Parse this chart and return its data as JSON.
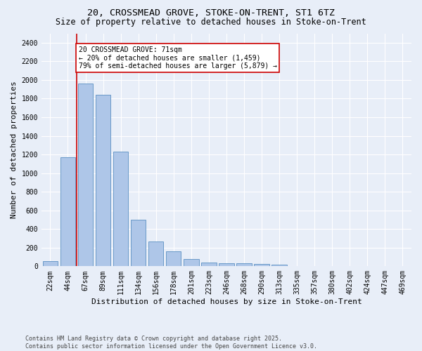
{
  "title1": "20, CROSSMEAD GROVE, STOKE-ON-TRENT, ST1 6TZ",
  "title2": "Size of property relative to detached houses in Stoke-on-Trent",
  "xlabel": "Distribution of detached houses by size in Stoke-on-Trent",
  "ylabel": "Number of detached properties",
  "categories": [
    "22sqm",
    "44sqm",
    "67sqm",
    "89sqm",
    "111sqm",
    "134sqm",
    "156sqm",
    "178sqm",
    "201sqm",
    "223sqm",
    "246sqm",
    "268sqm",
    "290sqm",
    "313sqm",
    "335sqm",
    "357sqm",
    "380sqm",
    "402sqm",
    "424sqm",
    "447sqm",
    "469sqm"
  ],
  "values": [
    55,
    1170,
    1960,
    1840,
    1230,
    500,
    265,
    160,
    80,
    40,
    35,
    30,
    25,
    15,
    5,
    3,
    2,
    1,
    1,
    0,
    0
  ],
  "bar_color": "#aec6e8",
  "bar_edge_color": "#5a8fc2",
  "bg_color": "#e8eef8",
  "grid_color": "#ffffff",
  "annotation_box_color": "#cc0000",
  "annotation_text": "20 CROSSMEAD GROVE: 71sqm\n← 20% of detached houses are smaller (1,459)\n79% of semi-detached houses are larger (5,879) →",
  "ylim": [
    0,
    2500
  ],
  "yticks": [
    0,
    200,
    400,
    600,
    800,
    1000,
    1200,
    1400,
    1600,
    1800,
    2000,
    2200,
    2400
  ],
  "footnote1": "Contains HM Land Registry data © Crown copyright and database right 2025.",
  "footnote2": "Contains public sector information licensed under the Open Government Licence v3.0.",
  "title_fontsize": 9.5,
  "subtitle_fontsize": 8.5,
  "axis_label_fontsize": 8,
  "tick_fontsize": 7,
  "annot_fontsize": 7
}
